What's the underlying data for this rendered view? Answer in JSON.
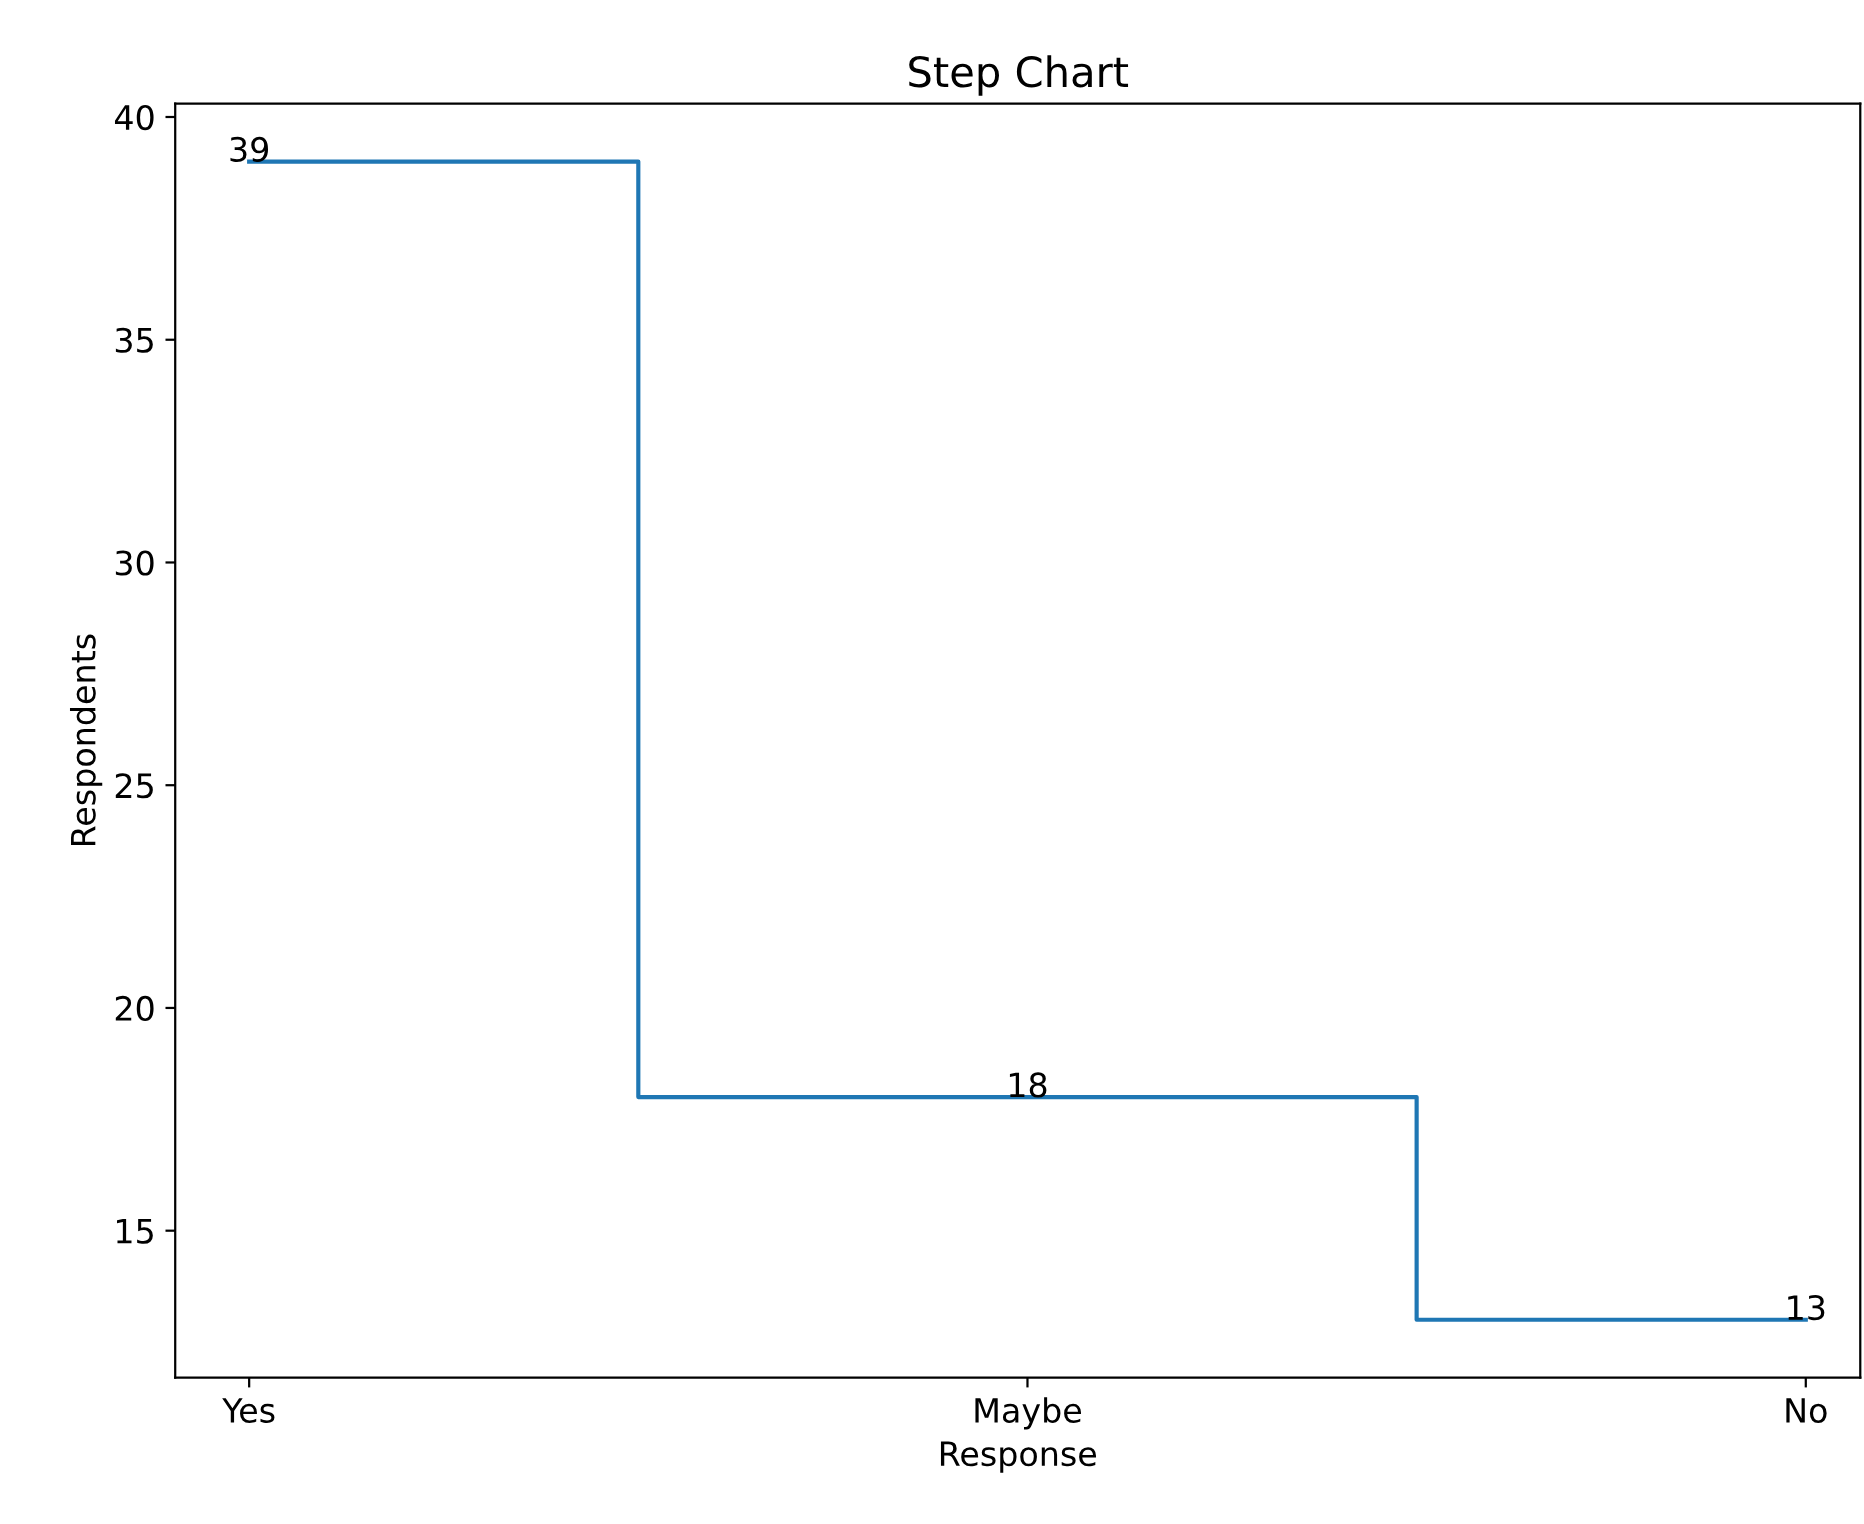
{
  "chart_data": {
    "type": "step",
    "title": "Step Chart",
    "xlabel": "Response",
    "ylabel": "Respondents",
    "categories": [
      "Yes",
      "Maybe",
      "No"
    ],
    "series": [
      {
        "color": "#1f77b4",
        "values": [
          39,
          18,
          13
        ]
      }
    ],
    "ylim": [
      11.7,
      40.3
    ],
    "yticks": [
      15,
      20,
      25,
      30,
      35,
      40
    ],
    "data_labels": true,
    "grid": false,
    "legend": false
  }
}
